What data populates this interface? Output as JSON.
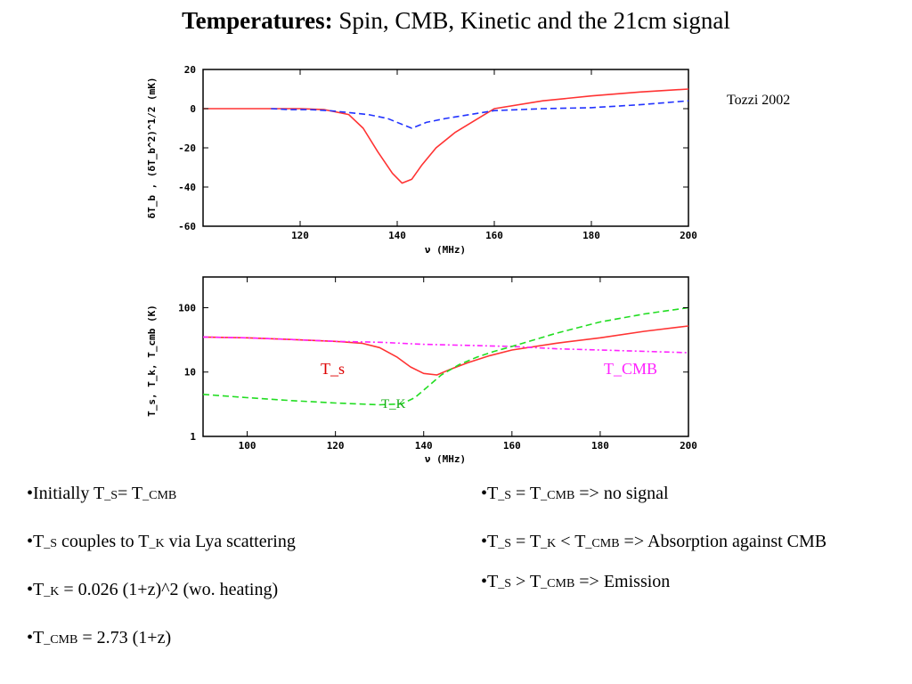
{
  "title": {
    "bold": "Temperatures:",
    "rest": " Spin, CMB, Kinetic and the 21cm signal"
  },
  "citation": "Tozzi 2002",
  "colors": {
    "spin": "#ff3333",
    "cmb": "#ff22ff",
    "kinetic": "#22dd22",
    "signal21": "#2233ff"
  },
  "chart_data": [
    {
      "type": "line",
      "xlabel": "ν (MHz)",
      "ylabel": "δT_b , (δT_b^2)^1/2 (mK)",
      "xlim": [
        100,
        200
      ],
      "ylim": [
        -60,
        20
      ],
      "xticks": [
        120,
        140,
        160,
        180,
        200
      ],
      "yticks": [
        20,
        0,
        -20,
        -40,
        -60
      ],
      "series": [
        {
          "style": "solid",
          "color": "#ff3333",
          "x": [
            100,
            110,
            115,
            120,
            125,
            130,
            133,
            136,
            139,
            141,
            143,
            145,
            148,
            152,
            156,
            160,
            170,
            180,
            190,
            200
          ],
          "y": [
            0,
            0,
            0,
            0,
            -0.5,
            -3,
            -10,
            -22,
            -33,
            -38,
            -36,
            -29,
            -20,
            -12,
            -6,
            0,
            4,
            6.5,
            8.5,
            10
          ]
        },
        {
          "style": "dashed",
          "color": "#2233ff",
          "x": [
            114,
            118,
            122,
            126,
            130,
            134,
            138,
            141,
            143,
            146,
            150,
            155,
            160,
            165,
            170,
            180,
            190,
            200
          ],
          "y": [
            0,
            -0.5,
            -0.5,
            -1,
            -2,
            -3,
            -5,
            -8,
            -10,
            -7,
            -5,
            -3,
            -1,
            -0.5,
            0,
            0.5,
            2,
            4
          ]
        }
      ]
    },
    {
      "type": "line",
      "xlabel": "ν (MHz)",
      "ylabel": "T_s, T_k, T_cmb (K)",
      "xscale": "linear",
      "yscale": "log",
      "xlim": [
        90,
        200
      ],
      "ylim": [
        1,
        300
      ],
      "xticks": [
        100,
        120,
        140,
        160,
        180,
        200
      ],
      "yticks": [
        100,
        10,
        1
      ],
      "series": [
        {
          "name": "T_s",
          "style": "solid",
          "color": "#ff3333",
          "x": [
            90,
            100,
            110,
            120,
            126,
            130,
            134,
            137,
            140,
            143,
            146,
            150,
            155,
            160,
            170,
            180,
            190,
            200
          ],
          "y": [
            35,
            34,
            32,
            30,
            28,
            24,
            17,
            12,
            9.5,
            9,
            11,
            14,
            18,
            22,
            28,
            34,
            43,
            52
          ]
        },
        {
          "name": "T_CMB",
          "style": "dash-dot",
          "color": "#ff22ff",
          "x": [
            90,
            100,
            110,
            120,
            130,
            140,
            150,
            160,
            170,
            180,
            190,
            200
          ],
          "y": [
            35,
            34,
            32,
            30,
            29,
            27,
            26,
            25,
            23,
            22,
            21,
            20
          ]
        },
        {
          "name": "T_K",
          "style": "dashed",
          "color": "#22dd22",
          "x": [
            90,
            100,
            110,
            120,
            130,
            135,
            138,
            141,
            144,
            148,
            152,
            156,
            160,
            170,
            180,
            190,
            200
          ],
          "y": [
            4.5,
            4,
            3.6,
            3.3,
            3.1,
            3.2,
            4,
            6,
            9,
            13,
            17,
            21,
            25,
            40,
            60,
            80,
            100
          ]
        }
      ]
    }
  ],
  "left_bullets": [
    {
      "pre": "•Initially T",
      "sub1": "_S",
      "mid": "= T",
      "sub2": "_CMB",
      "post": ""
    },
    {
      "pre": "•T",
      "sub1": "_S",
      "mid": " couples to T",
      "sub2": "_K",
      "post": " via Lya scattering"
    },
    {
      "pre": "•T",
      "sub1": "_K",
      "mid": "  = 0.026 (1+z)^2  (wo. heating)",
      "sub2": "",
      "post": ""
    },
    {
      "pre": "•T",
      "sub1": "_CMB",
      "mid": " =  2.73 (1+z)",
      "sub2": "",
      "post": ""
    }
  ],
  "right_bullets": [
    {
      "pre": "•T",
      "sub1": "_S",
      "mid": " = T",
      "sub2": "_CMB",
      "mid2": "",
      "sub3": "",
      "post": " => no signal"
    },
    {
      "pre": "•T",
      "sub1": "_S",
      "mid": " = T",
      "sub2": "_K",
      "mid2": " < T",
      "sub3": "_CMB",
      "post": " => Absorption against CMB"
    },
    {
      "pre": "•T",
      "sub1": "_S",
      "mid": " > T",
      "sub2": "_CMB",
      "mid2": "",
      "sub3": "",
      "post": " => Emission"
    }
  ]
}
